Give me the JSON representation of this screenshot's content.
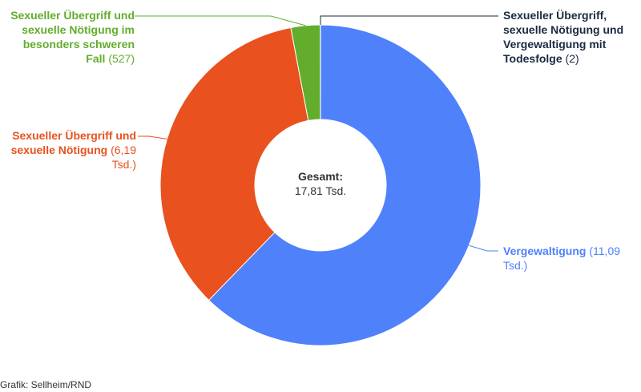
{
  "chart_data": {
    "type": "pie",
    "variant": "donut",
    "total": {
      "label": "Gesamt:",
      "value": "17,81 Tsd."
    },
    "slices": [
      {
        "name": "Vergewaltigung",
        "value": 11090,
        "value_label": "(11,09 Tsd.)",
        "color": "#4f81fb"
      },
      {
        "name": "Sexueller Übergriff und sexuelle Nötigung",
        "value": 6190,
        "value_label": "(6,19 Tsd.)",
        "color": "#e9511e"
      },
      {
        "name": "Sexueller Übergriff und sexuelle Nötigung im besonders schweren Fall",
        "value": 527,
        "value_label": "(527)",
        "color": "#62ad2c"
      },
      {
        "name": "Sexueller Übergriff, sexuelle Nötigung und Vergewaltigung mit Todesfolge",
        "value": 2,
        "value_label": "(2)",
        "color": "#1a2a40"
      }
    ]
  },
  "footer": {
    "credit": "Grafik: Sellheim/RND"
  }
}
